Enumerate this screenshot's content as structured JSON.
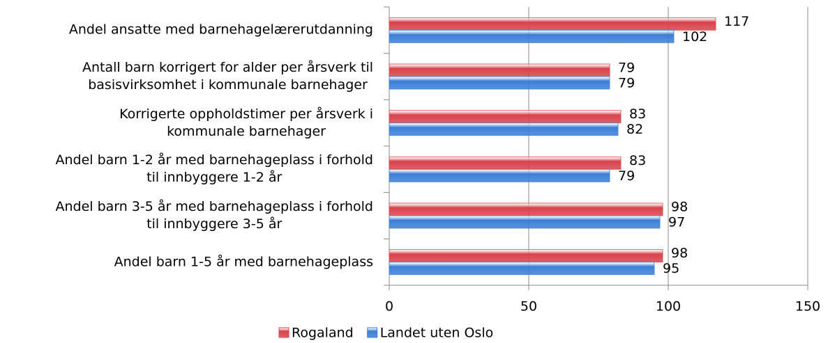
{
  "chart_data": {
    "type": "hbar",
    "categories": [
      "Andel ansatte med barnehagelærerutdanning",
      "Antall barn korrigert for alder per årsverk til\nbasisvirksomhet i kommunale barnehager",
      "Korrigerte oppholdstimer per årsverk i\nkommunale barnehager",
      "Andel barn 1-2 år med barnehageplass i forhold\ntil innbyggere 1-2 år",
      "Andel barn 3-5 år med barnehageplass i forhold\ntil innbyggere 3-5 år",
      "Andel barn 1-5 år med barnehageplass"
    ],
    "series": [
      {
        "name": "Rogaland",
        "color": "#d9434b",
        "values": [
          117,
          79,
          83,
          83,
          98,
          98
        ]
      },
      {
        "name": "Landet uten Oslo",
        "color": "#3c7fd6",
        "values": [
          102,
          79,
          82,
          79,
          97,
          95
        ]
      }
    ],
    "xlim": [
      0,
      150
    ],
    "xticks": [
      0,
      50,
      100,
      150
    ],
    "grid": true,
    "legend": "bottom"
  }
}
